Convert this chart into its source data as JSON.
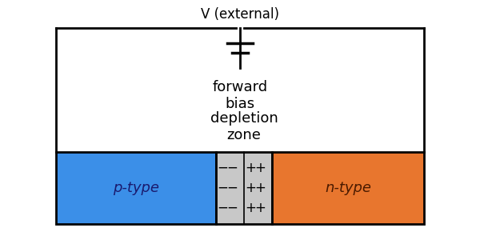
{
  "bg_color": "#ffffff",
  "p_type_color": "#3b8fe8",
  "n_type_color": "#e8762e",
  "depletion_color": "#c8c8c8",
  "outline_color": "#000000",
  "text_color": "#000000",
  "title_text": "V (external)",
  "forward_bias_text": "forward\nbias",
  "depletion_text": "depletion\nzone",
  "p_label": "p-type",
  "n_label": "n-type",
  "font_size_label": 13,
  "font_size_title": 12,
  "font_size_signs": 12
}
